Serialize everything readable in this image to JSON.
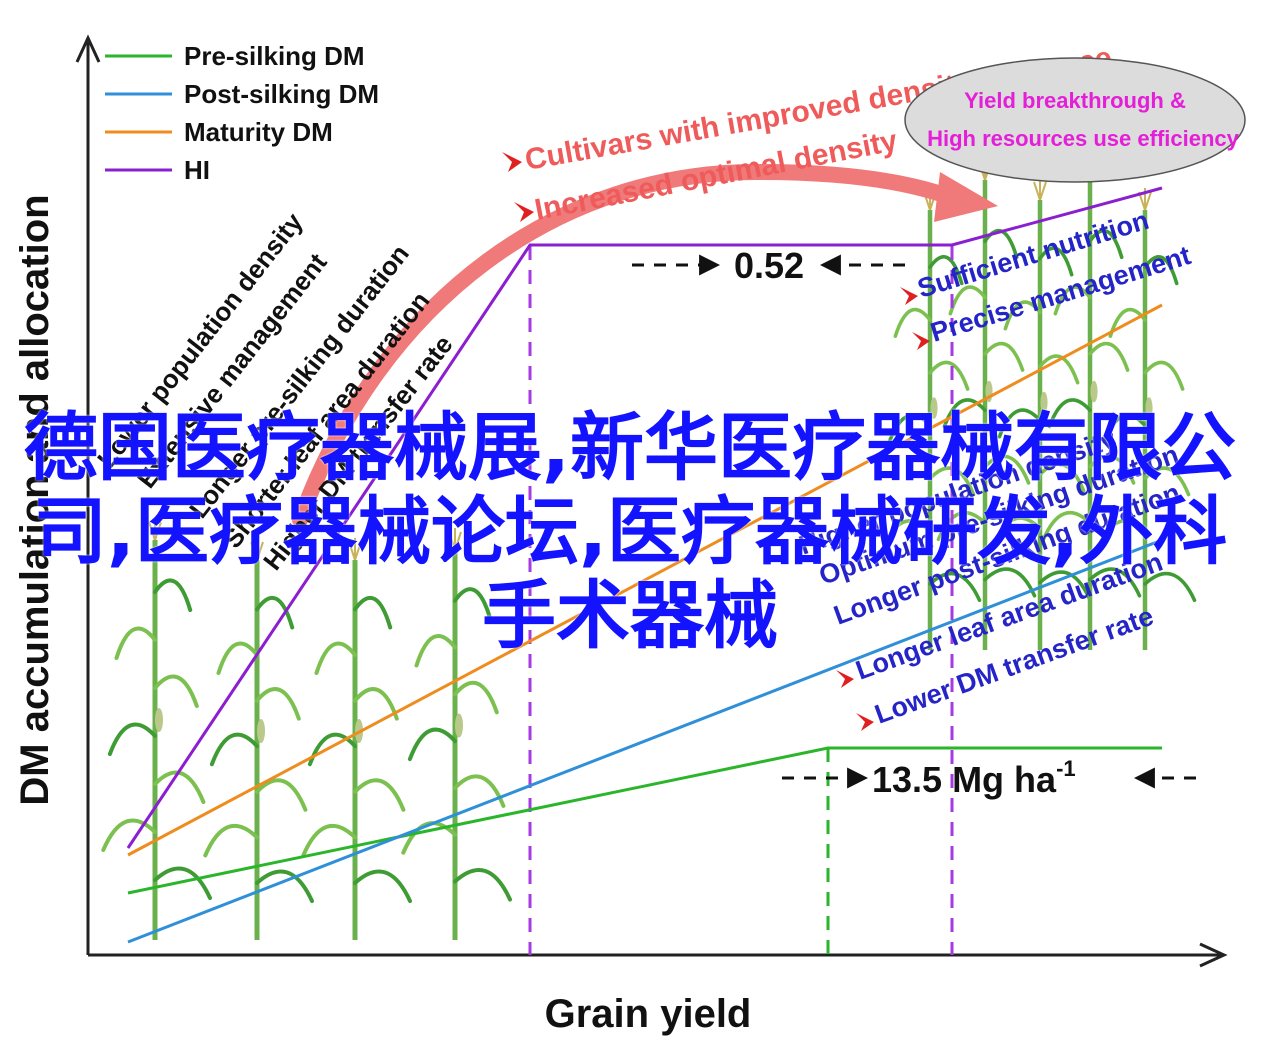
{
  "chart_data": {
    "type": "line",
    "xlabel": "Grain yield",
    "ylabel": "DM accumulation and allocation",
    "legend": [
      {
        "name": "Pre-silking DM",
        "color": "#2ab52a"
      },
      {
        "name": "Post-silking DM",
        "color": "#2f8fd8"
      },
      {
        "name": "Maturity DM",
        "color": "#ee8c1e"
      },
      {
        "name": "HI",
        "color": "#8a1fd0"
      }
    ],
    "legend_position": "top-left",
    "grid": false,
    "threshold_labels": {
      "hi": "0.52",
      "yield_prefix": "13.5 Mg ha",
      "yield_exp": "-1"
    },
    "left_annotations": [
      "Lower population density",
      "Extensive management",
      "Longer pre-silking duration",
      "Shorter leaf area duration",
      "Higher DM transfer rate"
    ],
    "top_annotations": [
      "Cultivars with improved density tolerance",
      "Increased optimal density"
    ],
    "oval_text": [
      "Yield breakthrough &",
      "High resources use efficiency"
    ],
    "right_annotations_top": [
      "Sufficient nutrition",
      "Precise management"
    ],
    "right_annotations_bottom": [
      "Higher population density",
      "Optimum pre-silking duration",
      "Longer post-silking duration",
      "Longer leaf area duration",
      "Lower DM transfer rate"
    ],
    "colors": {
      "pre": "#2ab52a",
      "post": "#2f8fd8",
      "maturity": "#ee8c1e",
      "hi": "#8a1fd0",
      "red": "#ef5b5b",
      "blue_text": "#2424c8",
      "oval_text": "#e41fd8"
    }
  },
  "watermark": "德国医疗器械展,新华医疗器械有限公司,医疗器械论坛,医疗器械研发,外科手术器械"
}
